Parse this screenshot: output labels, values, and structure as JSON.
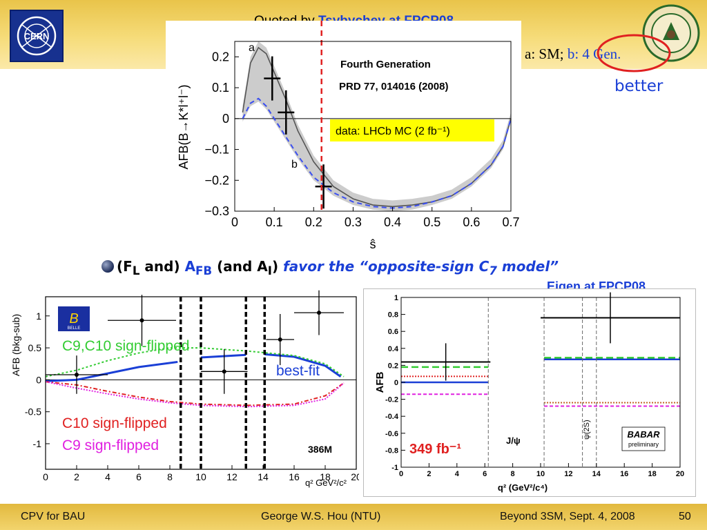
{
  "slide": {
    "quoted_prefix": "Quoted by ",
    "quoted_name": "Tsybychev at FPCP08",
    "legend_a": "a: SM; ",
    "legend_b": "b: 4 Gen.",
    "better": "better",
    "bullet_paren_open": "(",
    "bullet_FL": "F",
    "bullet_FL_sub": "L",
    "bullet_and": " and) ",
    "bullet_AFB": "A",
    "bullet_AFB_sub": "FB",
    "bullet_andAI": " (and A",
    "bullet_AI_sub": "I",
    "bullet_close": ") ",
    "bullet_favor": "favor the “opposite-sign C",
    "bullet_C7_sub": "7",
    "bullet_model": " model”",
    "eigen": "Eigen at FPCP08",
    "colors": {
      "accent_blue": "#1a3fd6",
      "footer": "#e7c24f",
      "red": "#e02020"
    }
  },
  "footer": {
    "left": "CPV for BAU",
    "center": "George W.S. Hou (NTU)",
    "right": "Beyond 3SM, Sept. 4, 2008",
    "page": "50"
  },
  "chart_data": [
    {
      "type": "line",
      "title": "",
      "annotations": [
        "Fourth Generation",
        "PRD 77, 014016 (2008)",
        "data: LHCb MC (2 fb⁻¹)",
        "a",
        "b"
      ],
      "xlabel": "ŝ",
      "ylabel": "AFB(B→K*l⁺l⁻)",
      "xlim": [
        0,
        0.7
      ],
      "ylim": [
        -0.3,
        0.25
      ],
      "x_ticks": [
        "0",
        "0.1",
        "0.2",
        "0.3",
        "0.4",
        "0.5",
        "0.6",
        "0.7"
      ],
      "y_ticks": [
        "0.2",
        "0.1",
        "0",
        "−0.1",
        "−0.2",
        "−0.3"
      ],
      "series": [
        {
          "name": "a",
          "style": "solid",
          "x": [
            0.02,
            0.04,
            0.06,
            0.08,
            0.1,
            0.13,
            0.16,
            0.2,
            0.25,
            0.3,
            0.35,
            0.4,
            0.45,
            0.5,
            0.55,
            0.6,
            0.65,
            0.68,
            0.7
          ],
          "y": [
            0.02,
            0.18,
            0.23,
            0.21,
            0.15,
            0.06,
            -0.04,
            -0.14,
            -0.22,
            -0.26,
            -0.28,
            -0.285,
            -0.28,
            -0.27,
            -0.25,
            -0.21,
            -0.15,
            -0.09,
            0.0
          ]
        },
        {
          "name": "b",
          "style": "dashed",
          "x": [
            0.02,
            0.04,
            0.06,
            0.08,
            0.1,
            0.13,
            0.16,
            0.2,
            0.25,
            0.3,
            0.35,
            0.4,
            0.45,
            0.5,
            0.55,
            0.6,
            0.65,
            0.68,
            0.7
          ],
          "y": [
            0.0,
            0.05,
            0.065,
            0.04,
            0.0,
            -0.06,
            -0.12,
            -0.19,
            -0.24,
            -0.27,
            -0.285,
            -0.29,
            -0.285,
            -0.27,
            -0.25,
            -0.21,
            -0.15,
            -0.09,
            0.0
          ]
        }
      ],
      "data_points": [
        {
          "x": 0.095,
          "y": 0.13
        },
        {
          "x": 0.13,
          "y": 0.02
        },
        {
          "x": 0.225,
          "y": -0.22
        }
      ],
      "vline_x": 0.22,
      "band_color": "#bbbbbb"
    },
    {
      "type": "scatter",
      "title": "",
      "annotations": [
        "C9,C10 sign-flipped",
        "best-fit",
        "C10 sign-flipped",
        "C9 sign-flipped",
        "386M",
        "BELLE"
      ],
      "xlabel": "q² GeV²/c²",
      "ylabel": "AFB (bkg-sub)",
      "xlim": [
        0,
        20
      ],
      "ylim": [
        -1.4,
        1.3
      ],
      "x_ticks": [
        "0",
        "2",
        "4",
        "6",
        "8",
        "10",
        "12",
        "14",
        "16",
        "18",
        "20"
      ],
      "y_ticks": [
        "1",
        "0.5",
        "0",
        "-0.5",
        "-1"
      ],
      "points": [
        {
          "x": 2.0,
          "y": 0.08,
          "xerr": 2.0,
          "yerr": 0.3
        },
        {
          "x": 6.2,
          "y": 0.93,
          "xerr": 2.2,
          "yerr": 0.4
        },
        {
          "x": 11.5,
          "y": 0.13,
          "xerr": 1.5,
          "yerr": 0.35
        },
        {
          "x": 15.1,
          "y": 0.63,
          "xerr": 0.9,
          "yerr": 0.4
        },
        {
          "x": 17.6,
          "y": 1.05,
          "xerr": 1.6,
          "yerr": 0.35
        }
      ],
      "vlines_x": [
        8.7,
        10.0,
        12.9,
        14.1
      ]
    },
    {
      "type": "scatter",
      "title": "",
      "annotations": [
        "J/ψ",
        "ψ(2S)",
        "349 fb⁻¹",
        "BABAR",
        "preliminary"
      ],
      "xlabel": "q² (GeV²/c⁴)",
      "ylabel": "AFB",
      "xlim": [
        0,
        20
      ],
      "ylim": [
        -1,
        1
      ],
      "x_ticks": [
        "0",
        "2",
        "4",
        "6",
        "8",
        "10",
        "12",
        "14",
        "16",
        "18",
        "20"
      ],
      "y_ticks": [
        "1",
        "0.8",
        "0.6",
        "0.4",
        "0.2",
        "0",
        "-0.2",
        "-0.4",
        "-0.6",
        "-0.8",
        "-1"
      ],
      "points": [
        {
          "x": 3.2,
          "y": 0.24,
          "xerr": 3.2,
          "yerr": 0.22
        },
        {
          "x": 15.0,
          "y": 0.76,
          "xerr": 5.0,
          "yerr": 0.3
        }
      ],
      "vlines_x": [
        6.25,
        10.25,
        13.0,
        14.0
      ]
    }
  ]
}
